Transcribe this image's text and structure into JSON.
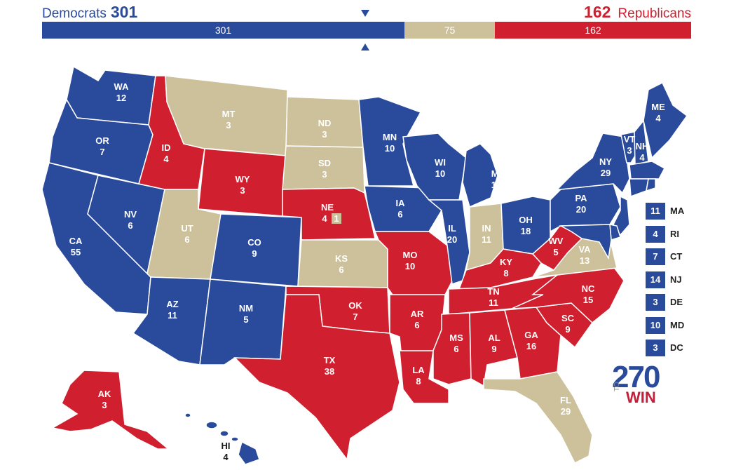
{
  "header": {
    "dem_label": "Democrats",
    "dem_total": "301",
    "rep_label": "Republicans",
    "rep_total": "162"
  },
  "bar": {
    "dem": "301",
    "tossup": "75",
    "rep": "162"
  },
  "colors": {
    "dem": "#2a4b9b",
    "rep": "#d0202f",
    "tossup": "#cdc19b"
  },
  "states": {
    "WA": {
      "abbr": "WA",
      "ev": "12"
    },
    "OR": {
      "abbr": "OR",
      "ev": "7"
    },
    "CA": {
      "abbr": "CA",
      "ev": "55"
    },
    "NV": {
      "abbr": "NV",
      "ev": "6"
    },
    "ID": {
      "abbr": "ID",
      "ev": "4"
    },
    "MT": {
      "abbr": "MT",
      "ev": "3"
    },
    "WY": {
      "abbr": "WY",
      "ev": "3"
    },
    "UT": {
      "abbr": "UT",
      "ev": "6"
    },
    "AZ": {
      "abbr": "AZ",
      "ev": "11"
    },
    "CO": {
      "abbr": "CO",
      "ev": "9"
    },
    "NM": {
      "abbr": "NM",
      "ev": "5"
    },
    "ND": {
      "abbr": "ND",
      "ev": "3"
    },
    "SD": {
      "abbr": "SD",
      "ev": "3"
    },
    "NE": {
      "abbr": "NE",
      "ev": "4",
      "extra": "1"
    },
    "KS": {
      "abbr": "KS",
      "ev": "6"
    },
    "OK": {
      "abbr": "OK",
      "ev": "7"
    },
    "TX": {
      "abbr": "TX",
      "ev": "38"
    },
    "MN": {
      "abbr": "MN",
      "ev": "10"
    },
    "IA": {
      "abbr": "IA",
      "ev": "6"
    },
    "MO": {
      "abbr": "MO",
      "ev": "10"
    },
    "AR": {
      "abbr": "AR",
      "ev": "6"
    },
    "LA": {
      "abbr": "LA",
      "ev": "8"
    },
    "WI": {
      "abbr": "WI",
      "ev": "10"
    },
    "IL": {
      "abbr": "IL",
      "ev": "20"
    },
    "MI": {
      "abbr": "MI",
      "ev": "16"
    },
    "IN": {
      "abbr": "IN",
      "ev": "11"
    },
    "OH": {
      "abbr": "OH",
      "ev": "18"
    },
    "KY": {
      "abbr": "KY",
      "ev": "8"
    },
    "TN": {
      "abbr": "TN",
      "ev": "11"
    },
    "MS": {
      "abbr": "MS",
      "ev": "6"
    },
    "AL": {
      "abbr": "AL",
      "ev": "9"
    },
    "GA": {
      "abbr": "GA",
      "ev": "16"
    },
    "FL": {
      "abbr": "FL",
      "ev": "29"
    },
    "SC": {
      "abbr": "SC",
      "ev": "9"
    },
    "NC": {
      "abbr": "NC",
      "ev": "15"
    },
    "VA": {
      "abbr": "VA",
      "ev": "13"
    },
    "WV": {
      "abbr": "WV",
      "ev": "5"
    },
    "PA": {
      "abbr": "PA",
      "ev": "20"
    },
    "NY": {
      "abbr": "NY",
      "ev": "29"
    },
    "VT": {
      "abbr": "VT",
      "ev": "3"
    },
    "NH": {
      "abbr": "NH",
      "ev": "4"
    },
    "ME": {
      "abbr": "ME",
      "ev": "4"
    },
    "AK": {
      "abbr": "AK",
      "ev": "3"
    },
    "HI": {
      "abbr": "HI",
      "ev": "4"
    }
  },
  "small_states": [
    {
      "abbr": "MA",
      "ev": "11"
    },
    {
      "abbr": "RI",
      "ev": "4"
    },
    {
      "abbr": "CT",
      "ev": "7"
    },
    {
      "abbr": "NJ",
      "ev": "14"
    },
    {
      "abbr": "DE",
      "ev": "3"
    },
    {
      "abbr": "MD",
      "ev": "10"
    },
    {
      "abbr": "DC",
      "ev": "3"
    }
  ],
  "logo": {
    "number": "270",
    "to": "TO",
    "win": "WIN"
  }
}
